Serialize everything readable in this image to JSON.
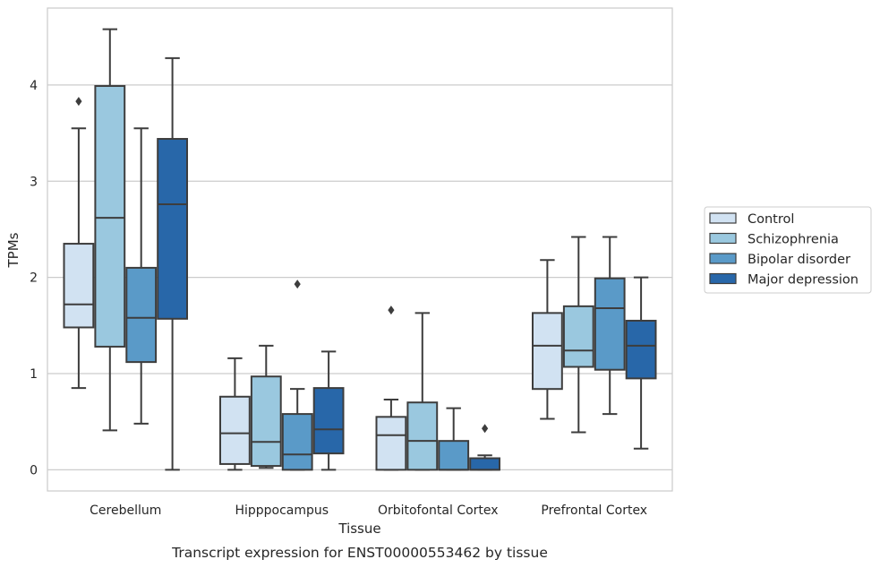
{
  "caption": "Transcript expression for ENST00000553462 by tissue",
  "chart_data": {
    "type": "box",
    "xlabel": "Tissue",
    "ylabel": "TPMs",
    "ylim": [
      -0.22,
      4.8
    ],
    "yticks": [
      0,
      1,
      2,
      3,
      4
    ],
    "grid": "horizontal",
    "legend_position": "right, outside plot",
    "categories": [
      "Cerebellum",
      "Hipppocampus",
      "Orbitofontal Cortex",
      "Prefrontal Cortex"
    ],
    "series": [
      {
        "name": "Control",
        "color": "#d1e2f2",
        "boxes": [
          {
            "whisker_low": 0.85,
            "q1": 1.48,
            "median": 1.72,
            "q3": 2.35,
            "whisker_high": 3.55,
            "outliers": [
              3.83
            ]
          },
          {
            "whisker_low": 0.0,
            "q1": 0.06,
            "median": 0.38,
            "q3": 0.76,
            "whisker_high": 1.16,
            "outliers": []
          },
          {
            "whisker_low": 0.0,
            "q1": 0.0,
            "median": 0.36,
            "q3": 0.55,
            "whisker_high": 0.73,
            "outliers": [
              1.66
            ]
          },
          {
            "whisker_low": 0.53,
            "q1": 0.84,
            "median": 1.29,
            "q3": 1.63,
            "whisker_high": 2.18,
            "outliers": []
          }
        ]
      },
      {
        "name": "Schizophrenia",
        "color": "#9ac8df",
        "boxes": [
          {
            "whisker_low": 0.41,
            "q1": 1.28,
            "median": 2.62,
            "q3": 3.99,
            "whisker_high": 4.58,
            "outliers": []
          },
          {
            "whisker_low": 0.02,
            "q1": 0.04,
            "median": 0.29,
            "q3": 0.97,
            "whisker_high": 1.29,
            "outliers": []
          },
          {
            "whisker_low": 0.0,
            "q1": 0.0,
            "median": 0.3,
            "q3": 0.7,
            "whisker_high": 1.63,
            "outliers": []
          },
          {
            "whisker_low": 0.39,
            "q1": 1.07,
            "median": 1.24,
            "q3": 1.7,
            "whisker_high": 2.42,
            "outliers": []
          }
        ]
      },
      {
        "name": "Bipolar disorder",
        "color": "#5a9ac8",
        "boxes": [
          {
            "whisker_low": 0.48,
            "q1": 1.12,
            "median": 1.58,
            "q3": 2.1,
            "whisker_high": 3.55,
            "outliers": []
          },
          {
            "whisker_low": 0.0,
            "q1": 0.0,
            "median": 0.16,
            "q3": 0.58,
            "whisker_high": 0.84,
            "outliers": [
              1.93
            ]
          },
          {
            "whisker_low": 0.0,
            "q1": 0.0,
            "median": 0.0,
            "q3": 0.3,
            "whisker_high": 0.64,
            "outliers": []
          },
          {
            "whisker_low": 0.58,
            "q1": 1.04,
            "median": 1.68,
            "q3": 1.99,
            "whisker_high": 2.42,
            "outliers": []
          }
        ]
      },
      {
        "name": "Major depression",
        "color": "#2867a9",
        "boxes": [
          {
            "whisker_low": 0.0,
            "q1": 1.57,
            "median": 2.76,
            "q3": 3.44,
            "whisker_high": 4.28,
            "outliers": []
          },
          {
            "whisker_low": 0.0,
            "q1": 0.17,
            "median": 0.42,
            "q3": 0.85,
            "whisker_high": 1.23,
            "outliers": []
          },
          {
            "whisker_low": 0.0,
            "q1": 0.0,
            "median": 0.0,
            "q3": 0.12,
            "whisker_high": 0.15,
            "outliers": [
              0.43
            ]
          },
          {
            "whisker_low": 0.22,
            "q1": 0.95,
            "median": 1.29,
            "q3": 1.55,
            "whisker_high": 2.0,
            "outliers": []
          }
        ]
      }
    ]
  }
}
